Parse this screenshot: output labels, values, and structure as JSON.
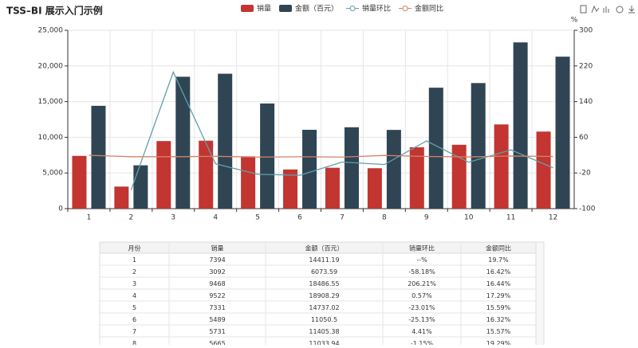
{
  "chart_data": {
    "type": "bar-line",
    "title": "TSS–BI 展示入门示例",
    "y2_label": "%",
    "categories": [
      "1",
      "2",
      "3",
      "4",
      "5",
      "6",
      "7",
      "8",
      "9",
      "10",
      "11",
      "12"
    ],
    "series": [
      {
        "name": "销量",
        "type": "bar",
        "color": "#c23531",
        "values": [
          7394,
          3092,
          9468,
          9522,
          7331,
          5489,
          5731,
          5665,
          8600,
          8950,
          11800,
          10800
        ]
      },
      {
        "name": "金额（百元）",
        "type": "bar",
        "color": "#2f4554",
        "values": [
          14411.19,
          6073.59,
          18486.55,
          18908.29,
          14737.02,
          11050.5,
          11405.38,
          11033.94,
          16950,
          17600,
          23300,
          21300
        ]
      },
      {
        "name": "销量环比",
        "type": "line",
        "axis": "y2",
        "color": "#61a0a8",
        "values": [
          null,
          -58.18,
          206.21,
          0.57,
          -23.01,
          -25.13,
          4.41,
          -1.15,
          51.8,
          4.07,
          31.8,
          -8.5
        ]
      },
      {
        "name": "金额同比",
        "type": "line",
        "axis": "y2",
        "color": "#d48265",
        "values": [
          19.7,
          16.42,
          16.44,
          17.29,
          15.59,
          16.32,
          15.57,
          19.29,
          17,
          16,
          18,
          17
        ]
      }
    ],
    "ylim": [
      0,
      25000
    ],
    "yticks": [
      0,
      {
        "value": 5000,
        "label": "5,000"
      },
      {
        "value": 10000,
        "label": "10,000"
      },
      {
        "value": 15000,
        "label": "15,000"
      },
      {
        "value": 20000,
        "label": "20,000"
      },
      {
        "value": 25000,
        "label": "25,000"
      }
    ],
    "y2lim": [
      -100,
      300
    ],
    "y2ticks": [
      -100,
      -20,
      60,
      140,
      220,
      300
    ],
    "grid": true
  },
  "table": {
    "header": [
      "月份",
      "销量",
      "金额（百元）",
      "销量环比",
      "金额同比"
    ],
    "rows": [
      [
        "1",
        "7394",
        "14411.19",
        "--%",
        "19.7%"
      ],
      [
        "2",
        "3092",
        "6073.59",
        "-58.18%",
        "16.42%"
      ],
      [
        "3",
        "9468",
        "18486.55",
        "206.21%",
        "16.44%"
      ],
      [
        "4",
        "9522",
        "18908.29",
        "0.57%",
        "17.29%"
      ],
      [
        "5",
        "7331",
        "14737.02",
        "-23.01%",
        "15.59%"
      ],
      [
        "6",
        "5489",
        "11050.5",
        "-25.13%",
        "16.32%"
      ],
      [
        "7",
        "5731",
        "11405.38",
        "4.41%",
        "15.57%"
      ],
      [
        "8",
        "5665",
        "11033.94",
        "-1.15%",
        "19.29%"
      ]
    ]
  }
}
